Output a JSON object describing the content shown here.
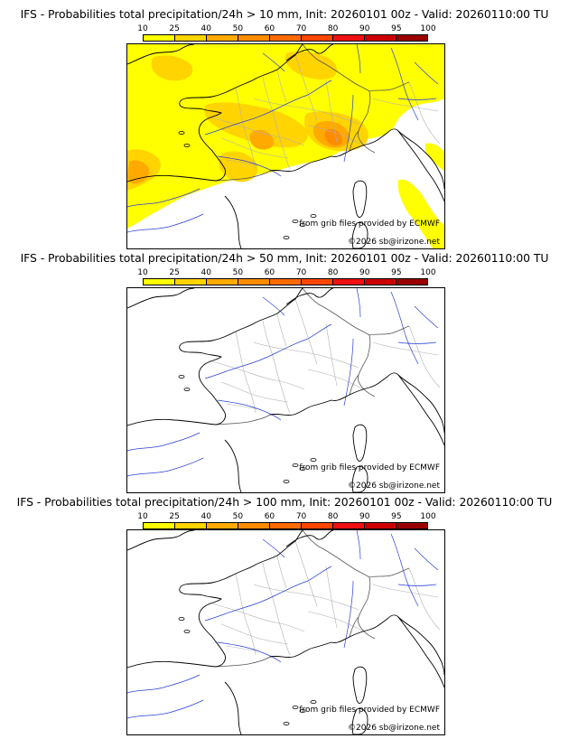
{
  "colorbar": {
    "ticks": [
      "10",
      "25",
      "40",
      "50",
      "60",
      "70",
      "80",
      "90",
      "95",
      "100"
    ],
    "colors": [
      "#ffff00",
      "#ffd400",
      "#ffaa00",
      "#ff8c00",
      "#ff6a00",
      "#ff4500",
      "#ee1111",
      "#cc0000",
      "#990000",
      "#660000"
    ]
  },
  "panels": [
    {
      "title": "IFS - Probabilities total precipitation/24h > 10 mm, Init: 20260101 00z - Valid: 20260110:00 TU",
      "has_precip": true,
      "credit_grib": "from grib files provided by ECMWF",
      "credit_copy": "©2026 sb@irizone.net"
    },
    {
      "title": "IFS - Probabilities total precipitation/24h > 50 mm, Init: 20260101 00z - Valid: 20260110:00 TU",
      "has_precip": false,
      "credit_grib": "from grib files provided by ECMWF",
      "credit_copy": "©2026 sb@irizone.net"
    },
    {
      "title": "IFS - Probabilities total precipitation/24h > 100 mm, Init: 20260101 00z - Valid: 20260110:00 TU",
      "has_precip": false,
      "credit_grib": "from grib files provided by ECMWF",
      "credit_copy": "©2026 sb@irizone.net"
    }
  ],
  "colors": {
    "coast": "#000000",
    "borders": "#555555",
    "regions": "#b0b0b0",
    "rivers": "#2a3fd8"
  }
}
